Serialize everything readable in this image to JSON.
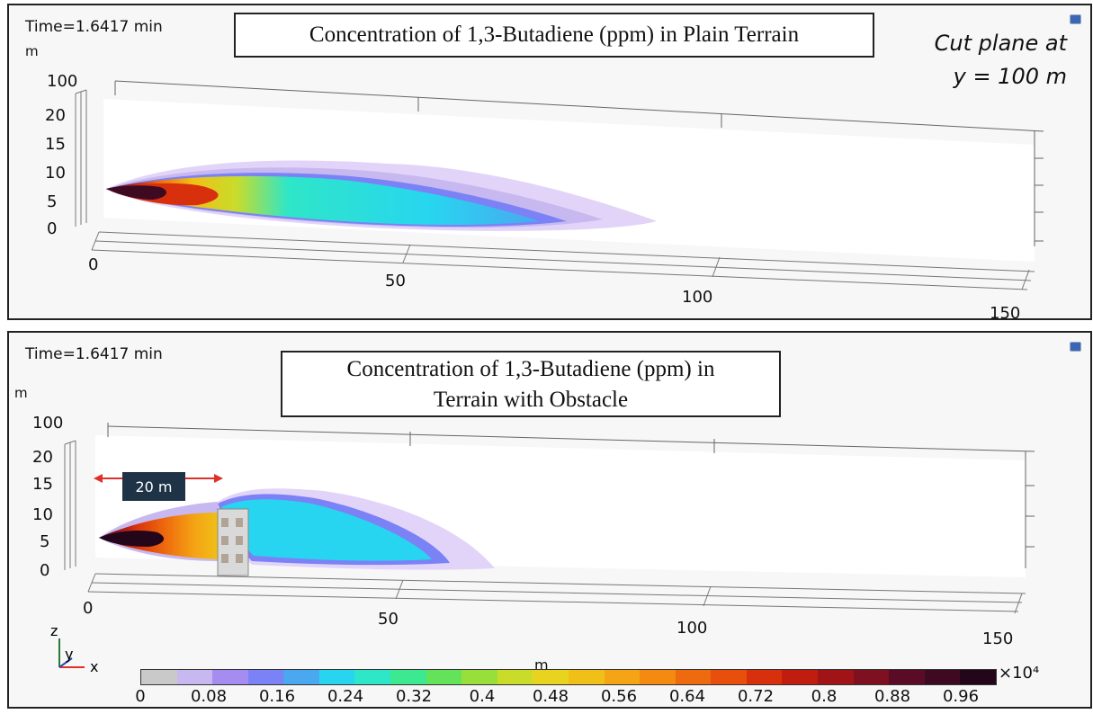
{
  "top_panel": {
    "time": "Time=1.6417 min",
    "unit": "m",
    "title": "Concentration of 1,3-Butadiene (ppm) in Plain Terrain",
    "cut_plane_line1": "Cut plane at",
    "cut_plane_line2": "y = 100 m",
    "y_label": "100",
    "z_ticks": [
      "20",
      "15",
      "10",
      "5",
      "0"
    ],
    "x_ticks": [
      "0",
      "50",
      "100",
      "150"
    ]
  },
  "bottom_panel": {
    "time": "Time=1.6417 min",
    "unit": "m",
    "title_line1": "Concentration of 1,3-Butadiene (ppm) in",
    "title_line2": "Terrain with Obstacle",
    "y_label": "100",
    "z_ticks": [
      "20",
      "15",
      "10",
      "5",
      "0"
    ],
    "x_ticks": [
      "0",
      "50",
      "100",
      "150"
    ],
    "annotation": "20 m"
  },
  "axes_triad": {
    "z": "z",
    "y": "y",
    "x": "x"
  },
  "colorbar": {
    "unit": "m",
    "multiplier": "×10⁴",
    "labels": [
      "0",
      "0.08",
      "0.16",
      "0.24",
      "0.32",
      "0.4",
      "0.48",
      "0.56",
      "0.64",
      "0.72",
      "0.8",
      "0.88",
      "0.96"
    ],
    "colors": [
      "#c9c9c9",
      "#c8b8f0",
      "#a58cf0",
      "#7b82f5",
      "#4aa8f0",
      "#28d5f0",
      "#2ee6c8",
      "#3ce890",
      "#62e35a",
      "#98df3c",
      "#c9dc2a",
      "#e8d41e",
      "#f0c018",
      "#f4a414",
      "#f48a10",
      "#ee6a0e",
      "#e84e0c",
      "#d8300c",
      "#c01c10",
      "#a01418",
      "#7e1020",
      "#5a0c26",
      "#3e0a22",
      "#24061a"
    ]
  }
}
